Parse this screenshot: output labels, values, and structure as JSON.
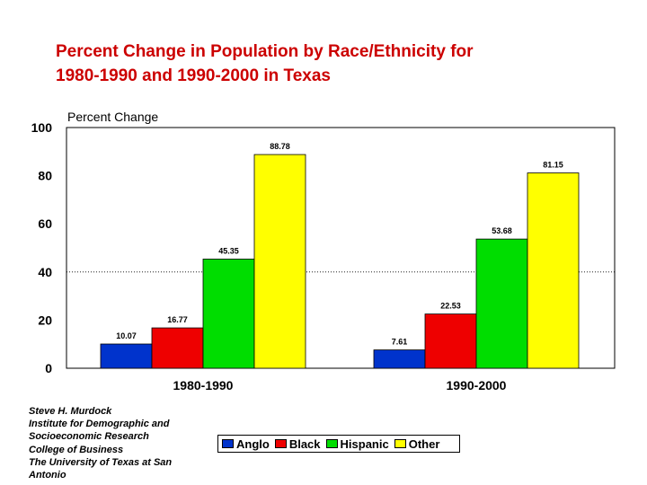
{
  "chart_data": {
    "type": "bar",
    "title_lines": [
      "Percent Change in Population by Race/Ethnicity for",
      "1980-1990 and 1990-2000 in Texas"
    ],
    "ylabel": "Percent Change",
    "xlabel": "",
    "ylim": [
      0,
      100
    ],
    "yticks": [
      0,
      20,
      40,
      60,
      80,
      100
    ],
    "grid": "dotted line at 40",
    "categories": [
      "1980-1990",
      "1990-2000"
    ],
    "series": [
      {
        "name": "Anglo",
        "color": "#0033cc",
        "values": [
          10.07,
          7.61
        ],
        "labels": [
          "10.07",
          "7.61"
        ]
      },
      {
        "name": "Black",
        "color": "#ee0000",
        "values": [
          16.77,
          22.53
        ],
        "labels": [
          "16.77",
          "22.53"
        ]
      },
      {
        "name": "Hispanic",
        "color": "#00dd00",
        "values": [
          45.35,
          53.68
        ],
        "labels": [
          "45.35",
          "53.68"
        ]
      },
      {
        "name": "Other",
        "color": "#ffff00",
        "values": [
          88.78,
          81.15
        ],
        "labels": [
          "88.78",
          "81.15"
        ]
      }
    ],
    "legend_placement": "bottom-center"
  },
  "credit": {
    "lines": [
      "Steve H. Murdock",
      "Institute for Demographic and",
      "Socioeconomic Research",
      "College of Business",
      "The University of Texas at San",
      "Antonio"
    ]
  }
}
